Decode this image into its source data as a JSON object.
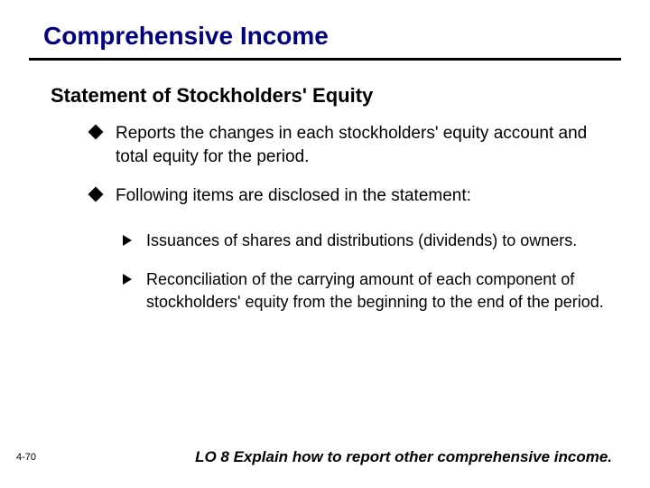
{
  "title": "Comprehensive Income",
  "subtitle": "Statement of Stockholders' Equity",
  "bullets": [
    "Reports the changes in each stockholders' equity account and total equity for the period.",
    "Following items are disclosed in the statement:"
  ],
  "subbullets": [
    "Issuances of shares and distributions (dividends) to owners.",
    "Reconciliation of the carrying amount of each component of stockholders' equity from the beginning to the end of the period."
  ],
  "pageNumber": "4-70",
  "footer": "LO 8  Explain how to report other comprehensive income.",
  "colors": {
    "titleColor": "#000080",
    "ruleColor": "#000000",
    "textColor": "#000000",
    "background": "#ffffff"
  },
  "fonts": {
    "titleSize": 28,
    "subtitleSize": 22,
    "bulletSize": 19,
    "subbulletSize": 18,
    "footerSize": 17,
    "pageNumSize": 11
  }
}
